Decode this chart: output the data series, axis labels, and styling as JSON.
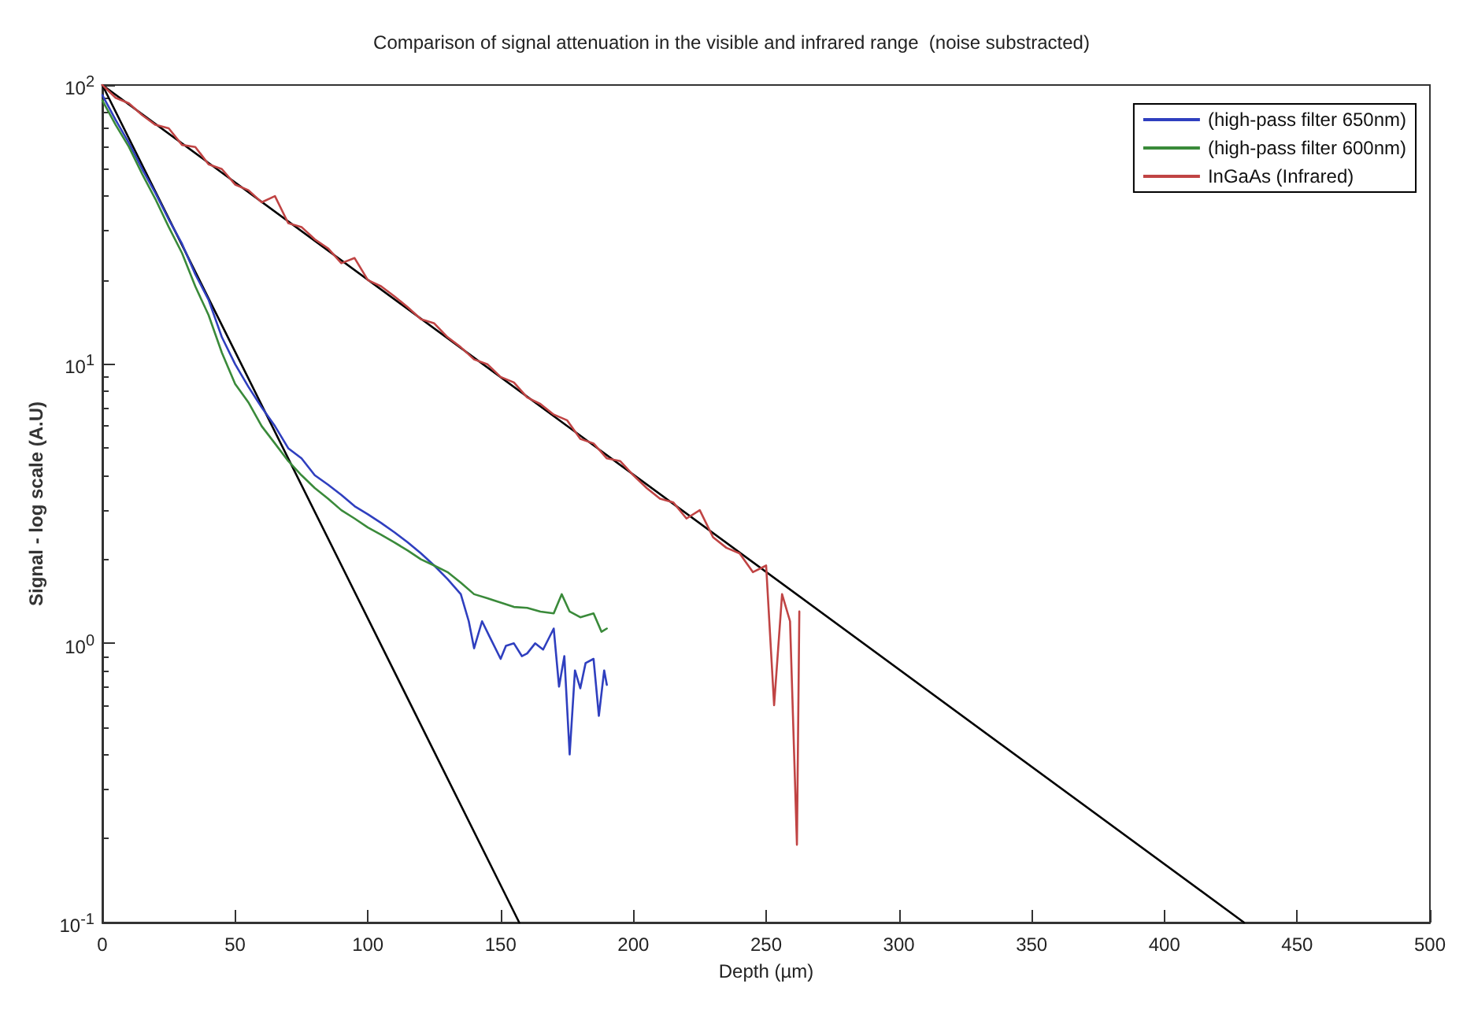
{
  "chart_data": {
    "type": "line",
    "title": "Comparison of signal attenuation in the visible and infrared range  (noise substracted)",
    "xlabel": "Depth (µm)",
    "ylabel": "Signal - log scale (A.U)",
    "log": "y",
    "grid": false,
    "legend": "top right",
    "marker": "none",
    "line_style": "solid",
    "xlim": [
      0,
      500
    ],
    "xticks": [
      0,
      50,
      100,
      150,
      200,
      250,
      300,
      350,
      400,
      450,
      500
    ],
    "ylim": [
      0.1,
      100
    ],
    "yticks": [
      {
        "value": 0.1,
        "label": "10$^{-1}$"
      },
      {
        "value": 1,
        "label": "10$^{0}$"
      },
      {
        "value": 10,
        "label": "10$^{1}$"
      },
      {
        "value": 100,
        "label": "10$^{2}$"
      }
    ],
    "series": [
      {
        "name": "(high-pass filter 650nm)",
        "color": "#2f3fbf",
        "x": [
          0,
          5,
          10,
          15,
          20,
          25,
          30,
          35,
          40,
          45,
          50,
          55,
          60,
          65,
          70,
          75,
          80,
          85,
          90,
          95,
          100,
          105,
          110,
          115,
          120,
          125,
          130,
          135,
          138,
          140,
          143,
          146,
          150,
          152,
          155,
          158,
          160,
          163,
          166,
          170,
          172,
          174,
          176,
          178,
          180,
          182,
          185,
          187,
          189,
          190
        ],
        "values": [
          92,
          75,
          62,
          50,
          41,
          33,
          27,
          21,
          17,
          12.5,
          10,
          8.3,
          7,
          6,
          5,
          4.6,
          4,
          3.7,
          3.4,
          3.1,
          2.9,
          2.7,
          2.5,
          2.3,
          2.1,
          1.9,
          1.7,
          1.5,
          1.2,
          0.96,
          1.2,
          1.05,
          0.88,
          0.98,
          1.0,
          0.9,
          0.92,
          1.0,
          0.95,
          1.13,
          0.7,
          0.9,
          0.4,
          0.8,
          0.69,
          0.85,
          0.88,
          0.55,
          0.8,
          0.71
        ]
      },
      {
        "name": "(high-pass filter 600nm)",
        "color": "#3a8a3a",
        "x": [
          0,
          5,
          10,
          15,
          20,
          25,
          30,
          35,
          40,
          45,
          50,
          55,
          60,
          65,
          70,
          75,
          80,
          85,
          90,
          95,
          100,
          105,
          110,
          115,
          120,
          125,
          130,
          135,
          140,
          145,
          150,
          155,
          160,
          165,
          170,
          173,
          176,
          180,
          185,
          188,
          190
        ],
        "values": [
          88,
          72,
          60,
          48,
          39,
          31,
          25,
          19,
          15,
          11,
          8.5,
          7.3,
          6,
          5.2,
          4.5,
          4,
          3.6,
          3.3,
          3.0,
          2.8,
          2.6,
          2.45,
          2.3,
          2.15,
          2.0,
          1.9,
          1.8,
          1.65,
          1.5,
          1.45,
          1.4,
          1.35,
          1.34,
          1.3,
          1.28,
          1.5,
          1.3,
          1.24,
          1.28,
          1.1,
          1.13
        ]
      },
      {
        "name": "InGaAs (Infrared)",
        "color": "#c04444",
        "x": [
          0,
          5,
          10,
          15,
          20,
          25,
          30,
          35,
          40,
          45,
          50,
          55,
          60,
          65,
          70,
          75,
          80,
          85,
          90,
          95,
          100,
          105,
          110,
          115,
          120,
          125,
          130,
          135,
          140,
          145,
          150,
          155,
          160,
          165,
          170,
          175,
          180,
          185,
          190,
          195,
          200,
          205,
          210,
          215,
          220,
          225,
          230,
          235,
          240,
          245,
          250,
          253,
          256,
          259,
          261.6,
          262.5
        ],
        "values": [
          100,
          90,
          86,
          78,
          72,
          70,
          61,
          60,
          52,
          50,
          44,
          42,
          38,
          40,
          32,
          31,
          28,
          26,
          23,
          24,
          20,
          19,
          17.5,
          16,
          14.5,
          14,
          12.5,
          11.5,
          10.4,
          10,
          9,
          8.6,
          7.6,
          7.2,
          6.6,
          6.3,
          5.4,
          5.2,
          4.6,
          4.5,
          4.0,
          3.6,
          3.3,
          3.2,
          2.8,
          3.0,
          2.4,
          2.2,
          2.1,
          1.8,
          1.9,
          0.6,
          1.5,
          1.2,
          0.19,
          1.3
        ]
      },
      {
        "color": "#000000",
        "x": [
          0,
          430
        ],
        "values": [
          100,
          0.1
        ]
      },
      {
        "color": "#000000",
        "x": [
          0,
          157
        ],
        "values": [
          100,
          0.1
        ]
      }
    ]
  }
}
